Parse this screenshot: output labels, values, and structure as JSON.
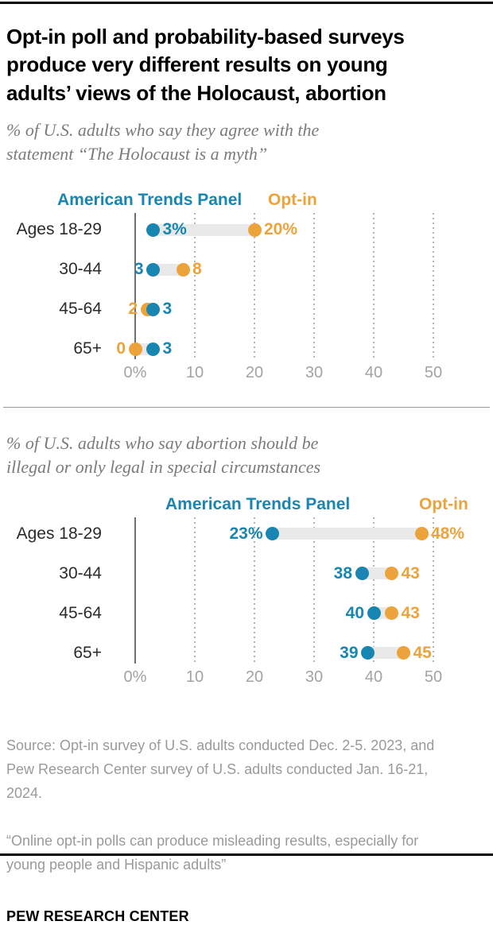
{
  "title": "Opt-in poll and probability-based surveys\nproduce very different results on young\nadults’ views of the Holocaust, abortion",
  "colors": {
    "atp": "#1886B0",
    "optin": "#ECA33B",
    "connector": "#E9E9E9"
  },
  "footer": {
    "source": "Source: Opt-in survey of U.S. adults conducted Dec. 2-5. 2023, and\nPew Research Center survey of U.S. adults conducted Jan. 16-21,\n2024.",
    "report": "“Online opt-in polls can produce misleading results, especially for\nyoung people and Hispanic adults”",
    "brand": "PEW RESEARCH CENTER"
  },
  "chart_data": [
    {
      "type": "dumbbell-dot-plot",
      "subtitle": "% of U.S. adults who say they agree with the\nstatement “The Holocaust is a myth”",
      "legend": {
        "atp": "American Trends Panel",
        "optin": "Opt-in"
      },
      "categories": [
        "Ages 18-29",
        "30-44",
        "45-64",
        "65+"
      ],
      "series": [
        {
          "name": "American Trends Panel",
          "values": [
            3,
            3,
            3,
            3
          ]
        },
        {
          "name": "Opt-in",
          "values": [
            20,
            8,
            2,
            0
          ]
        }
      ],
      "rows": [
        {
          "category": "Ages 18-29",
          "atp": 3,
          "optin": 20,
          "atp_label": "3%",
          "optin_label": "20%",
          "atp_side": "right",
          "optin_side": "right"
        },
        {
          "category": "30-44",
          "atp": 3,
          "optin": 8,
          "atp_label": "3",
          "optin_label": "8",
          "atp_side": "left",
          "optin_side": "right"
        },
        {
          "category": "45-64",
          "atp": 3,
          "optin": 2,
          "atp_label": "3",
          "optin_label": "2",
          "atp_side": "right",
          "optin_side": "left"
        },
        {
          "category": "65+",
          "atp": 3,
          "optin": 0,
          "atp_label": "3",
          "optin_label": "0",
          "atp_side": "right",
          "optin_side": "left"
        }
      ],
      "x_ticks": [
        {
          "value": 0,
          "label": "0%"
        },
        {
          "value": 10,
          "label": "10"
        },
        {
          "value": 20,
          "label": "20"
        },
        {
          "value": 30,
          "label": "30"
        },
        {
          "value": 40,
          "label": "40"
        },
        {
          "value": 50,
          "label": "50"
        }
      ],
      "xlim": [
        0,
        55
      ],
      "grid": "dotted-vertical",
      "legend_position": "top"
    },
    {
      "type": "dumbbell-dot-plot",
      "subtitle": "% of U.S. adults who say abortion should be\nillegal or only legal in special circumstances",
      "legend": {
        "atp": "American Trends Panel",
        "optin": "Opt-in"
      },
      "categories": [
        "Ages 18-29",
        "30-44",
        "45-64",
        "65+"
      ],
      "series": [
        {
          "name": "American Trends Panel",
          "values": [
            23,
            38,
            40,
            39
          ]
        },
        {
          "name": "Opt-in",
          "values": [
            48,
            43,
            43,
            45
          ]
        }
      ],
      "rows": [
        {
          "category": "Ages 18-29",
          "atp": 23,
          "optin": 48,
          "atp_label": "23%",
          "optin_label": "48%",
          "atp_side": "left",
          "optin_side": "right"
        },
        {
          "category": "30-44",
          "atp": 38,
          "optin": 43,
          "atp_label": "38",
          "optin_label": "43",
          "atp_side": "left",
          "optin_side": "right"
        },
        {
          "category": "45-64",
          "atp": 40,
          "optin": 43,
          "atp_label": "40",
          "optin_label": "43",
          "atp_side": "left",
          "optin_side": "right"
        },
        {
          "category": "65+",
          "atp": 39,
          "optin": 45,
          "atp_label": "39",
          "optin_label": "45",
          "atp_side": "left",
          "optin_side": "right"
        }
      ],
      "x_ticks": [
        {
          "value": 0,
          "label": "0%"
        },
        {
          "value": 10,
          "label": "10"
        },
        {
          "value": 20,
          "label": "20"
        },
        {
          "value": 30,
          "label": "30"
        },
        {
          "value": 40,
          "label": "40"
        },
        {
          "value": 50,
          "label": "50"
        }
      ],
      "xlim": [
        0,
        55
      ],
      "grid": "dotted-vertical",
      "legend_position": "top"
    }
  ]
}
